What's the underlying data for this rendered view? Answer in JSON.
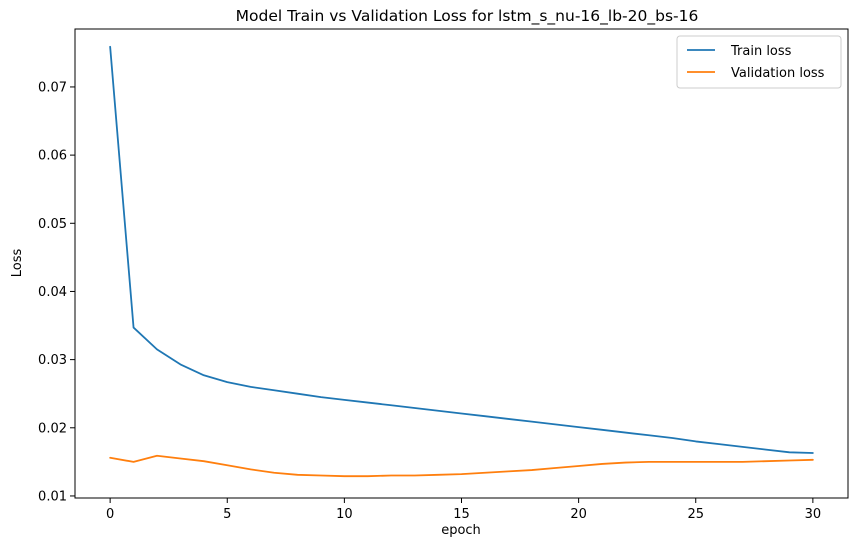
{
  "chart_data": {
    "type": "line",
    "title": "Model Train vs Validation Loss for lstm_s_nu-16_lb-20_bs-16",
    "xlabel": "epoch",
    "ylabel": "Loss",
    "xlim": [
      -1.5,
      31.5
    ],
    "ylim": [
      0.0097,
      0.0785
    ],
    "xticks": [
      0,
      5,
      10,
      15,
      20,
      25,
      30
    ],
    "xtick_labels": [
      "0",
      "5",
      "10",
      "15",
      "20",
      "25",
      "30"
    ],
    "yticks": [
      0.01,
      0.02,
      0.03,
      0.04,
      0.05,
      0.06,
      0.07
    ],
    "ytick_labels": [
      "0.01",
      "0.02",
      "0.03",
      "0.04",
      "0.05",
      "0.06",
      "0.07"
    ],
    "grid": false,
    "legend_position": "top-right",
    "x": [
      0,
      1,
      2,
      3,
      4,
      5,
      6,
      7,
      8,
      9,
      10,
      11,
      12,
      13,
      14,
      15,
      16,
      17,
      18,
      19,
      20,
      21,
      22,
      23,
      24,
      25,
      26,
      27,
      28,
      29,
      30
    ],
    "series": [
      {
        "name": "Train loss",
        "color": "#1f77b4",
        "values": [
          0.0759,
          0.0347,
          0.0315,
          0.0293,
          0.0277,
          0.0267,
          0.026,
          0.0255,
          0.025,
          0.0245,
          0.0241,
          0.0237,
          0.0233,
          0.0229,
          0.0225,
          0.0221,
          0.0217,
          0.0213,
          0.0209,
          0.0205,
          0.0201,
          0.0197,
          0.0193,
          0.0189,
          0.0185,
          0.018,
          0.0176,
          0.0172,
          0.0168,
          0.0164,
          0.0163
        ]
      },
      {
        "name": "Validation loss",
        "color": "#ff7f0e",
        "values": [
          0.0156,
          0.015,
          0.0159,
          0.0155,
          0.0151,
          0.0145,
          0.0139,
          0.0134,
          0.0131,
          0.013,
          0.0129,
          0.0129,
          0.013,
          0.013,
          0.0131,
          0.0132,
          0.0134,
          0.0136,
          0.0138,
          0.0141,
          0.0144,
          0.0147,
          0.0149,
          0.015,
          0.015,
          0.015,
          0.015,
          0.015,
          0.0151,
          0.0152,
          0.0153
        ]
      }
    ]
  }
}
